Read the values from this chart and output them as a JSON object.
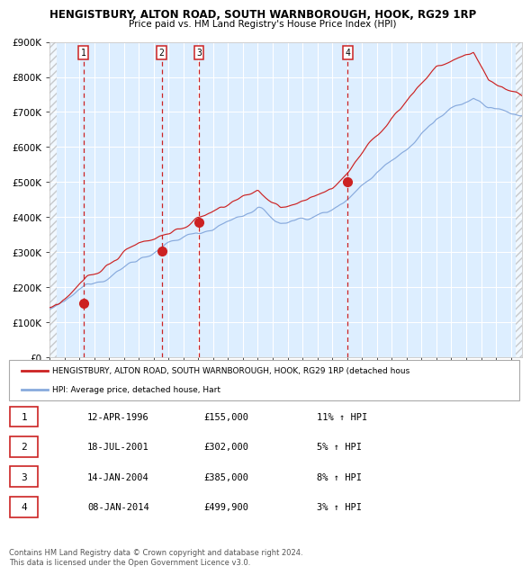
{
  "title": "HENGISTBURY, ALTON ROAD, SOUTH WARNBOROUGH, HOOK, RG29 1RP",
  "subtitle": "Price paid vs. HM Land Registry's House Price Index (HPI)",
  "ylim": [
    0,
    900000
  ],
  "yticks": [
    0,
    100000,
    200000,
    300000,
    400000,
    500000,
    600000,
    700000,
    800000,
    900000
  ],
  "ytick_labels": [
    "£0",
    "£100K",
    "£200K",
    "£300K",
    "£400K",
    "£500K",
    "£600K",
    "£700K",
    "£800K",
    "£900K"
  ],
  "xlim_start": 1994.0,
  "xlim_end": 2025.75,
  "hpi_color": "#88aadd",
  "price_color": "#cc2222",
  "background_color": "#ddeeff",
  "sale_dates": [
    1996.28,
    2001.54,
    2004.04,
    2014.03
  ],
  "sale_prices": [
    155000,
    302000,
    385000,
    499900
  ],
  "sale_labels": [
    "1",
    "2",
    "3",
    "4"
  ],
  "legend_price_label": "HENGISTBURY, ALTON ROAD, SOUTH WARNBOROUGH, HOOK, RG29 1RP (detached hous",
  "legend_hpi_label": "HPI: Average price, detached house, Hart",
  "table_data": [
    [
      "1",
      "12-APR-1996",
      "£155,000",
      "11% ↑ HPI"
    ],
    [
      "2",
      "18-JUL-2001",
      "£302,000",
      "5% ↑ HPI"
    ],
    [
      "3",
      "14-JAN-2004",
      "£385,000",
      "8% ↑ HPI"
    ],
    [
      "4",
      "08-JAN-2014",
      "£499,900",
      "3% ↑ HPI"
    ]
  ],
  "footnote": "Contains HM Land Registry data © Crown copyright and database right 2024.\nThis data is licensed under the Open Government Licence v3.0."
}
